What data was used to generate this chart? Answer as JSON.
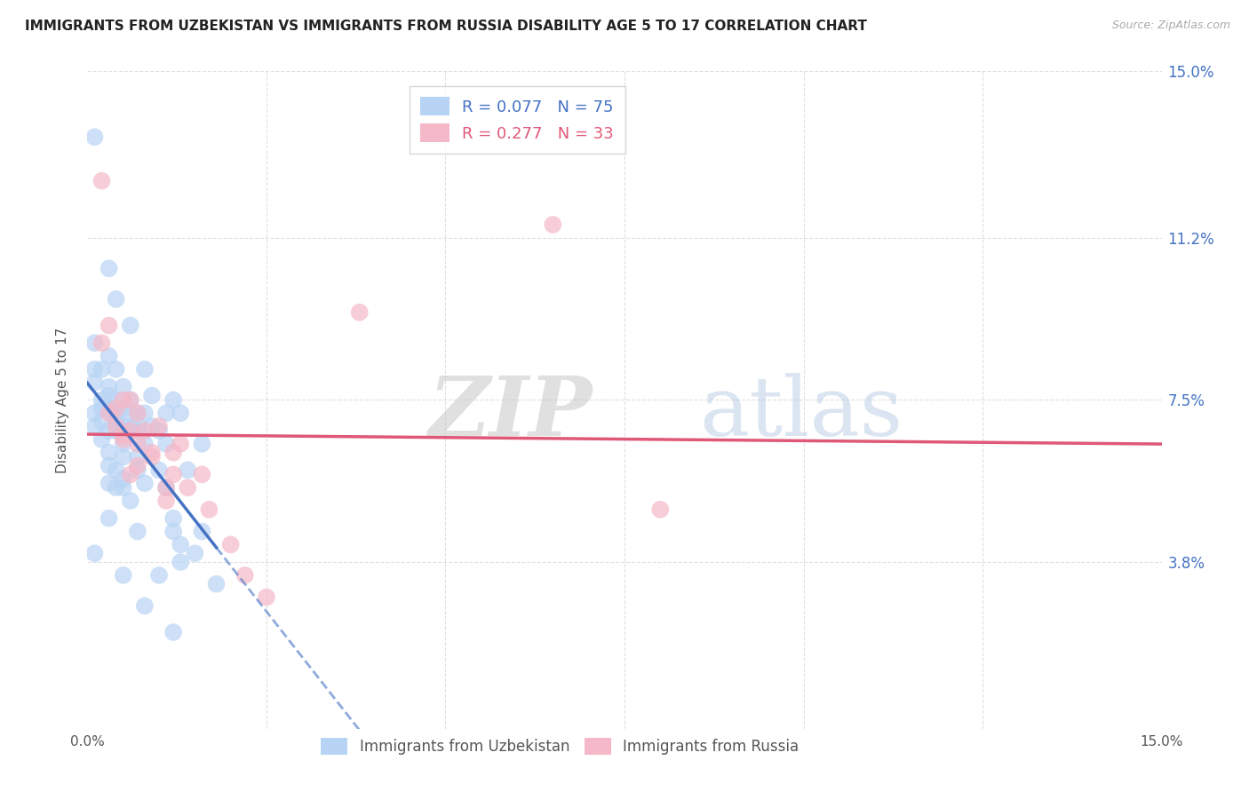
{
  "title": "IMMIGRANTS FROM UZBEKISTAN VS IMMIGRANTS FROM RUSSIA DISABILITY AGE 5 TO 17 CORRELATION CHART",
  "source": "Source: ZipAtlas.com",
  "ylabel": "Disability Age 5 to 17",
  "xlim": [
    0.0,
    0.15
  ],
  "ylim": [
    0.0,
    0.15
  ],
  "ytick_labels": [
    "3.8%",
    "7.5%",
    "11.2%",
    "15.0%"
  ],
  "ytick_positions": [
    0.038,
    0.075,
    0.112,
    0.15
  ],
  "R_uzbekistan": 0.077,
  "N_uzbekistan": 75,
  "R_russia": 0.277,
  "N_russia": 33,
  "uzbekistan_fill_color": "#b8d4f5",
  "russia_fill_color": "#f5b8c8",
  "uzbekistan_line_color": "#4472c4",
  "russia_line_color": "#e05878",
  "uzbekistan_scatter": [
    [
      0.001,
      0.135
    ],
    [
      0.003,
      0.105
    ],
    [
      0.004,
      0.098
    ],
    [
      0.006,
      0.092
    ],
    [
      0.001,
      0.088
    ],
    [
      0.003,
      0.085
    ],
    [
      0.001,
      0.082
    ],
    [
      0.002,
      0.082
    ],
    [
      0.004,
      0.082
    ],
    [
      0.008,
      0.082
    ],
    [
      0.001,
      0.079
    ],
    [
      0.003,
      0.078
    ],
    [
      0.005,
      0.078
    ],
    [
      0.003,
      0.076
    ],
    [
      0.009,
      0.076
    ],
    [
      0.002,
      0.075
    ],
    [
      0.004,
      0.075
    ],
    [
      0.006,
      0.075
    ],
    [
      0.012,
      0.075
    ],
    [
      0.002,
      0.073
    ],
    [
      0.003,
      0.073
    ],
    [
      0.005,
      0.073
    ],
    [
      0.001,
      0.072
    ],
    [
      0.004,
      0.072
    ],
    [
      0.006,
      0.072
    ],
    [
      0.007,
      0.072
    ],
    [
      0.008,
      0.072
    ],
    [
      0.011,
      0.072
    ],
    [
      0.013,
      0.072
    ],
    [
      0.002,
      0.07
    ],
    [
      0.004,
      0.07
    ],
    [
      0.001,
      0.069
    ],
    [
      0.005,
      0.069
    ],
    [
      0.006,
      0.069
    ],
    [
      0.007,
      0.069
    ],
    [
      0.009,
      0.069
    ],
    [
      0.003,
      0.068
    ],
    [
      0.004,
      0.068
    ],
    [
      0.006,
      0.068
    ],
    [
      0.007,
      0.068
    ],
    [
      0.01,
      0.068
    ],
    [
      0.002,
      0.066
    ],
    [
      0.005,
      0.065
    ],
    [
      0.008,
      0.065
    ],
    [
      0.011,
      0.065
    ],
    [
      0.016,
      0.065
    ],
    [
      0.003,
      0.063
    ],
    [
      0.005,
      0.062
    ],
    [
      0.007,
      0.062
    ],
    [
      0.003,
      0.06
    ],
    [
      0.004,
      0.059
    ],
    [
      0.007,
      0.059
    ],
    [
      0.01,
      0.059
    ],
    [
      0.014,
      0.059
    ],
    [
      0.005,
      0.057
    ],
    [
      0.003,
      0.056
    ],
    [
      0.008,
      0.056
    ],
    [
      0.004,
      0.055
    ],
    [
      0.005,
      0.055
    ],
    [
      0.011,
      0.055
    ],
    [
      0.006,
      0.052
    ],
    [
      0.003,
      0.048
    ],
    [
      0.012,
      0.048
    ],
    [
      0.007,
      0.045
    ],
    [
      0.012,
      0.045
    ],
    [
      0.016,
      0.045
    ],
    [
      0.013,
      0.042
    ],
    [
      0.001,
      0.04
    ],
    [
      0.015,
      0.04
    ],
    [
      0.013,
      0.038
    ],
    [
      0.005,
      0.035
    ],
    [
      0.01,
      0.035
    ],
    [
      0.018,
      0.033
    ],
    [
      0.008,
      0.028
    ],
    [
      0.012,
      0.022
    ]
  ],
  "russia_scatter": [
    [
      0.002,
      0.125
    ],
    [
      0.065,
      0.115
    ],
    [
      0.038,
      0.095
    ],
    [
      0.003,
      0.092
    ],
    [
      0.002,
      0.088
    ],
    [
      0.005,
      0.075
    ],
    [
      0.006,
      0.075
    ],
    [
      0.004,
      0.073
    ],
    [
      0.003,
      0.072
    ],
    [
      0.007,
      0.072
    ],
    [
      0.004,
      0.069
    ],
    [
      0.01,
      0.069
    ],
    [
      0.006,
      0.068
    ],
    [
      0.008,
      0.068
    ],
    [
      0.005,
      0.067
    ],
    [
      0.005,
      0.066
    ],
    [
      0.007,
      0.065
    ],
    [
      0.013,
      0.065
    ],
    [
      0.009,
      0.063
    ],
    [
      0.012,
      0.063
    ],
    [
      0.009,
      0.062
    ],
    [
      0.007,
      0.06
    ],
    [
      0.006,
      0.058
    ],
    [
      0.012,
      0.058
    ],
    [
      0.016,
      0.058
    ],
    [
      0.011,
      0.055
    ],
    [
      0.014,
      0.055
    ],
    [
      0.011,
      0.052
    ],
    [
      0.017,
      0.05
    ],
    [
      0.08,
      0.05
    ],
    [
      0.02,
      0.042
    ],
    [
      0.022,
      0.035
    ],
    [
      0.025,
      0.03
    ]
  ],
  "watermark_zip": "ZIP",
  "watermark_atlas": "atlas",
  "background_color": "#ffffff",
  "grid_color": "#dddddd"
}
